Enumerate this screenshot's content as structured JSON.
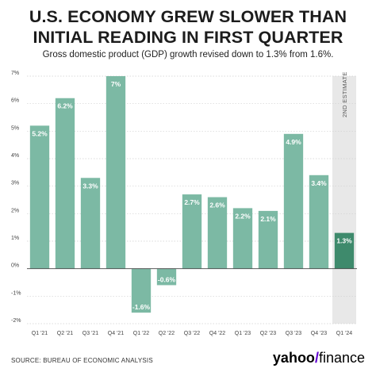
{
  "title_line1": "U.S. ECONOMY GREW SLOWER THAN",
  "title_line2": "INITIAL READING IN FIRST QUARTER",
  "subtitle": "Gross domestic product (GDP) growth revised down to 1.3% from 1.6%.",
  "source": "SOURCE: BUREAU OF ECONOMIC ANALYSIS",
  "brand": {
    "part1": "yahoo",
    "mark": "/",
    "part2": "finance"
  },
  "colors": {
    "bar": "#7cb9a4",
    "highlight_bar": "#3e8a6c",
    "estimate_band": "#e8e8e8",
    "grid": "#d0d0d0"
  },
  "chart_data": {
    "type": "bar",
    "categories": [
      "Q1 '21",
      "Q2 '21",
      "Q3 '21",
      "Q4 '21",
      "Q1 '22",
      "Q2 '22",
      "Q3 '22",
      "Q4 '22",
      "Q1 '23",
      "Q2 '23",
      "Q3 '23",
      "Q4 '23",
      "Q1 '24"
    ],
    "values": [
      5.2,
      6.2,
      3.3,
      7.0,
      -1.6,
      -0.6,
      2.7,
      2.6,
      2.2,
      2.1,
      4.9,
      3.4,
      1.3
    ],
    "data_labels": [
      "5.2%",
      "6.2%",
      "3.3%",
      "7%",
      "-1.6%",
      "-0.6%",
      "2.7%",
      "2.6%",
      "2.2%",
      "2.1%",
      "4.9%",
      "3.4%",
      "1.3%"
    ],
    "y_ticks": [
      "-2%",
      "-1%",
      "0%",
      "1%",
      "2%",
      "3%",
      "4%",
      "5%",
      "6%",
      "7%"
    ],
    "ylim": [
      -2,
      7
    ],
    "highlight_index": 12,
    "annotation": "2ND ESTIMATE",
    "grid": true
  }
}
